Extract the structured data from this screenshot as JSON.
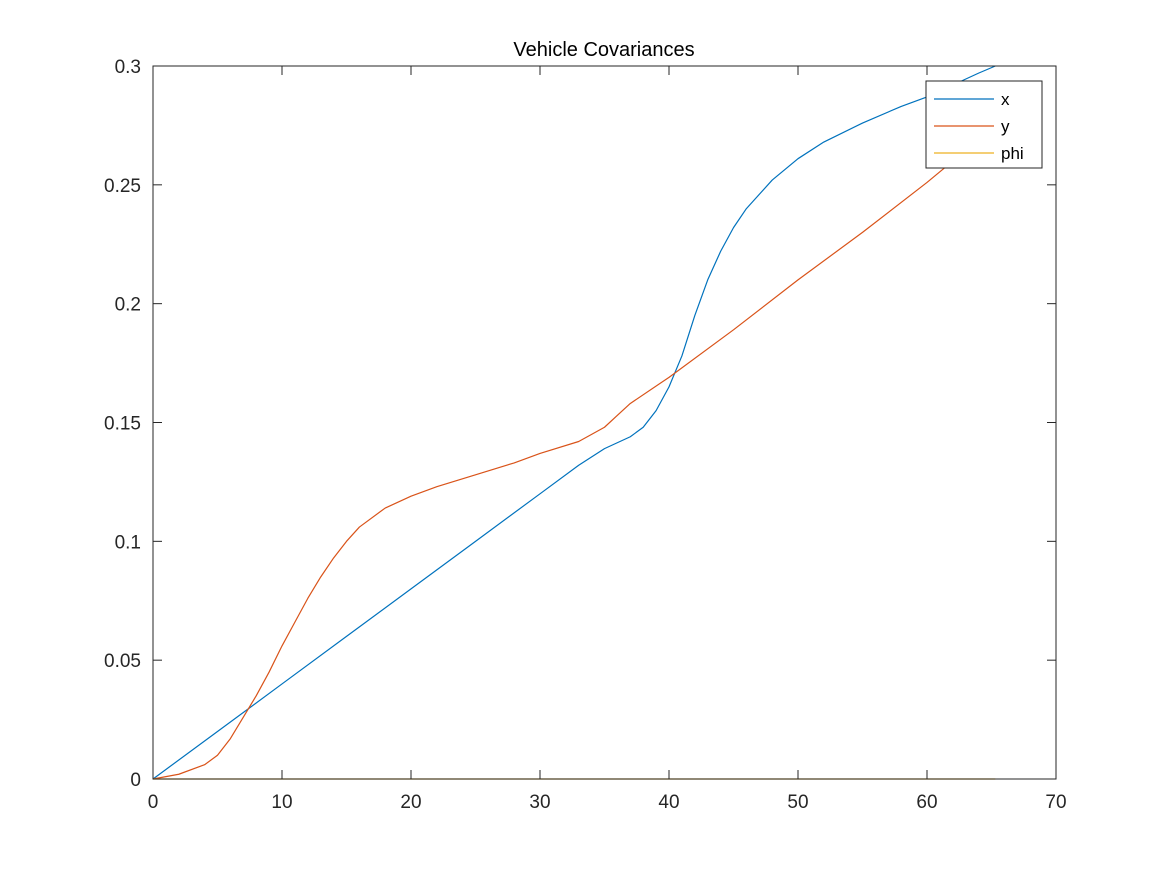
{
  "chart_data": {
    "type": "line",
    "title": "Vehicle Covariances",
    "xlabel": "",
    "ylabel": "",
    "xlim": [
      0,
      70
    ],
    "ylim": [
      0,
      0.3
    ],
    "xticks": [
      0,
      10,
      20,
      30,
      40,
      50,
      60,
      70
    ],
    "xtick_labels": [
      "0",
      "10",
      "20",
      "30",
      "40",
      "50",
      "60",
      "70"
    ],
    "yticks": [
      0,
      0.05,
      0.1,
      0.15,
      0.2,
      0.25,
      0.3
    ],
    "ytick_labels": [
      "0",
      "0.05",
      "0.1",
      "0.15",
      "0.2",
      "0.25",
      "0.3"
    ],
    "grid": false,
    "legend_position": "top-right",
    "series": [
      {
        "name": "x",
        "color": "#0072BD",
        "points": [
          [
            0,
            0
          ],
          [
            5,
            0.02
          ],
          [
            10,
            0.04
          ],
          [
            15,
            0.06
          ],
          [
            20,
            0.08
          ],
          [
            25,
            0.1
          ],
          [
            30,
            0.12
          ],
          [
            33,
            0.132
          ],
          [
            35,
            0.139
          ],
          [
            37,
            0.144
          ],
          [
            38,
            0.148
          ],
          [
            39,
            0.155
          ],
          [
            40,
            0.165
          ],
          [
            41,
            0.178
          ],
          [
            42,
            0.195
          ],
          [
            43,
            0.21
          ],
          [
            44,
            0.222
          ],
          [
            45,
            0.232
          ],
          [
            46,
            0.24
          ],
          [
            48,
            0.252
          ],
          [
            50,
            0.261
          ],
          [
            52,
            0.268
          ],
          [
            55,
            0.276
          ],
          [
            58,
            0.283
          ],
          [
            60,
            0.287
          ],
          [
            62,
            0.292
          ],
          [
            64,
            0.297
          ],
          [
            65.3,
            0.3
          ]
        ]
      },
      {
        "name": "y",
        "color": "#D95319",
        "points": [
          [
            0,
            0
          ],
          [
            2,
            0.002
          ],
          [
            4,
            0.006
          ],
          [
            5,
            0.01
          ],
          [
            6,
            0.017
          ],
          [
            7,
            0.026
          ],
          [
            8,
            0.035
          ],
          [
            9,
            0.045
          ],
          [
            10,
            0.056
          ],
          [
            11,
            0.066
          ],
          [
            12,
            0.076
          ],
          [
            13,
            0.085
          ],
          [
            14,
            0.093
          ],
          [
            15,
            0.1
          ],
          [
            16,
            0.106
          ],
          [
            18,
            0.114
          ],
          [
            20,
            0.119
          ],
          [
            22,
            0.123
          ],
          [
            25,
            0.128
          ],
          [
            28,
            0.133
          ],
          [
            30,
            0.137
          ],
          [
            33,
            0.142
          ],
          [
            35,
            0.148
          ],
          [
            36,
            0.153
          ],
          [
            37,
            0.158
          ],
          [
            40,
            0.169
          ],
          [
            45,
            0.189
          ],
          [
            50,
            0.21
          ],
          [
            55,
            0.23
          ],
          [
            60,
            0.251
          ],
          [
            62,
            0.26
          ],
          [
            65,
            0.272
          ]
        ]
      },
      {
        "name": "phi",
        "color": "#EDB120",
        "points": [
          [
            0,
            0
          ],
          [
            10,
            0
          ],
          [
            20,
            0
          ],
          [
            30,
            0
          ],
          [
            40,
            0
          ],
          [
            50,
            0
          ],
          [
            60,
            0
          ],
          [
            65.3,
            0
          ]
        ]
      }
    ]
  }
}
